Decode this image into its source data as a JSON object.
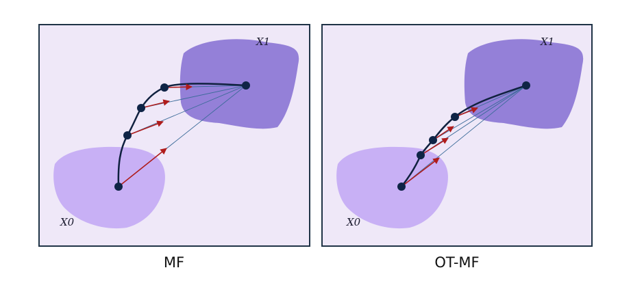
{
  "colors": {
    "panel_background": "#efe8f8",
    "panel_border": "#1f3346",
    "source_blob": "#c8b0f5",
    "target_blob": "#9480d8",
    "trajectory": "#10213f",
    "velocity_arrow": "#b01c1c",
    "guide_line": "#3a6a98",
    "node": "#0f2446"
  },
  "panels": [
    {
      "caption": "MF",
      "source_label": "X0",
      "target_label": "X1"
    },
    {
      "caption": "OT-MF",
      "source_label": "X0",
      "target_label": "X1"
    }
  ]
}
